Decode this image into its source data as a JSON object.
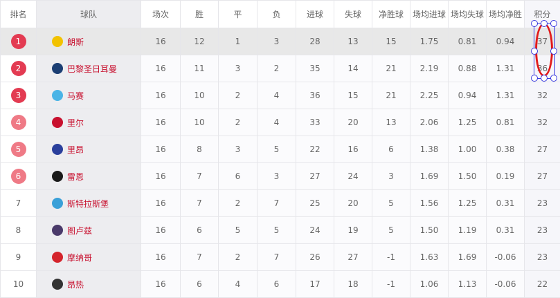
{
  "headers": [
    "排名",
    "球队",
    "场次",
    "胜",
    "平",
    "负",
    "进球",
    "失球",
    "净胜球",
    "场均进球",
    "场均失球",
    "场均净胜",
    "积分"
  ],
  "colors": {
    "top3_badge": "#e33b52",
    "euro_badge": "#ef7a86",
    "team_text": "#c8102e",
    "annotation": "#e21b1b"
  },
  "rows": [
    {
      "rank": "1",
      "team": "朗斯",
      "logo": "#f2c200",
      "cells": [
        "16",
        "12",
        "1",
        "3",
        "28",
        "13",
        "15",
        "1.75",
        "0.81",
        "0.94",
        "37"
      ]
    },
    {
      "rank": "2",
      "team": "巴黎圣日耳曼",
      "logo": "#1b3e73",
      "cells": [
        "16",
        "11",
        "3",
        "2",
        "35",
        "14",
        "21",
        "2.19",
        "0.88",
        "1.31",
        "36"
      ]
    },
    {
      "rank": "3",
      "team": "马赛",
      "logo": "#4ab4e6",
      "cells": [
        "16",
        "10",
        "2",
        "4",
        "36",
        "15",
        "21",
        "2.25",
        "0.94",
        "1.31",
        "32"
      ]
    },
    {
      "rank": "4",
      "team": "里尔",
      "logo": "#c8102e",
      "cells": [
        "16",
        "10",
        "2",
        "4",
        "33",
        "20",
        "13",
        "2.06",
        "1.25",
        "0.81",
        "32"
      ]
    },
    {
      "rank": "5",
      "team": "里昂",
      "logo": "#2a3f9c",
      "cells": [
        "16",
        "8",
        "3",
        "5",
        "22",
        "16",
        "6",
        "1.38",
        "1.00",
        "0.38",
        "27"
      ]
    },
    {
      "rank": "6",
      "team": "雷恩",
      "logo": "#1a1a1a",
      "cells": [
        "16",
        "7",
        "6",
        "3",
        "27",
        "24",
        "3",
        "1.69",
        "1.50",
        "0.19",
        "27"
      ]
    },
    {
      "rank": "7",
      "team": "斯特拉斯堡",
      "logo": "#3aa0d8",
      "cells": [
        "16",
        "7",
        "2",
        "7",
        "25",
        "20",
        "5",
        "1.56",
        "1.25",
        "0.31",
        "23"
      ]
    },
    {
      "rank": "8",
      "team": "图卢兹",
      "logo": "#4a3a6a",
      "cells": [
        "16",
        "6",
        "5",
        "5",
        "24",
        "19",
        "5",
        "1.50",
        "1.19",
        "0.31",
        "23"
      ]
    },
    {
      "rank": "9",
      "team": "摩纳哥",
      "logo": "#d4242c",
      "cells": [
        "16",
        "7",
        "2",
        "7",
        "26",
        "27",
        "-1",
        "1.63",
        "1.69",
        "-0.06",
        "23"
      ]
    },
    {
      "rank": "10",
      "team": "昂热",
      "logo": "#333333",
      "cells": [
        "16",
        "6",
        "4",
        "6",
        "17",
        "18",
        "-1",
        "1.06",
        "1.13",
        "-0.06",
        "22"
      ]
    }
  ]
}
